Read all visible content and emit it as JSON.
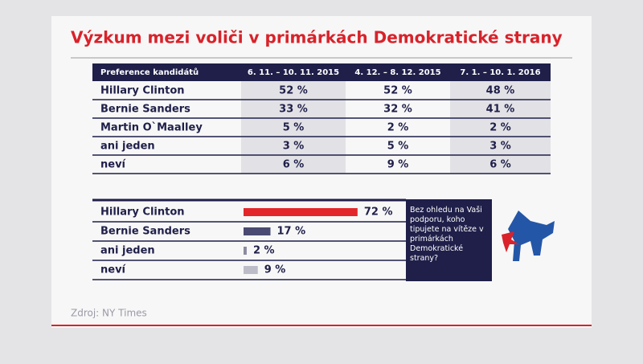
{
  "title": "Výzkum mezi voliči v primárkách Demokratické strany",
  "table": {
    "header": [
      "Preference kandidátů",
      "6. 11. – 10. 11. 2015",
      "4. 12. – 8. 12. 2015",
      "7. 1. – 10. 1. 2016"
    ],
    "rows": [
      [
        "Hillary Clinton",
        "52 %",
        "52 %",
        "48 %"
      ],
      [
        "Bernie Sanders",
        "33 %",
        "32 %",
        "41 %"
      ],
      [
        "Martin O`Maalley",
        "5 %",
        "2 %",
        "2 %"
      ],
      [
        "ani jeden",
        "3 %",
        "5 %",
        "3 %"
      ],
      [
        "neví",
        "6 %",
        "9 %",
        "6 %"
      ]
    ]
  },
  "chart_data": {
    "type": "bar",
    "categories": [
      "Hillary Clinton",
      "Bernie Sanders",
      "ani jeden",
      "neví"
    ],
    "values": [
      72,
      17,
      2,
      9
    ],
    "value_labels": [
      "72 %",
      "17 %",
      "2 %",
      "9 %"
    ],
    "colors": [
      "#e3262a",
      "#4a4a72",
      "#8a8aa0",
      "#bcbcc8"
    ],
    "xlim": [
      0,
      100
    ]
  },
  "question": "Bez ohledu na Vaši podporu, koho tipujete na vítěze v primárkách Demokratické strany?",
  "source": "Zdroj: NY Times"
}
